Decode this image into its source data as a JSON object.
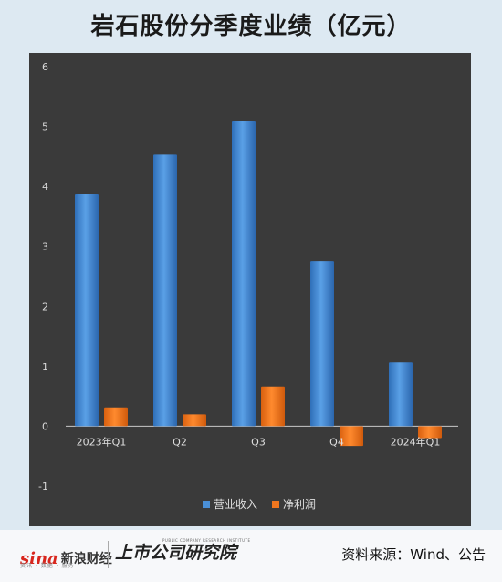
{
  "title": "岩石股份分季度业绩（亿元）",
  "chart_data": {
    "type": "bar",
    "categories": [
      "2023年Q1",
      "Q2",
      "Q3",
      "Q4",
      "2024年Q1"
    ],
    "series": [
      {
        "name": "营业收入",
        "values": [
          3.88,
          4.53,
          5.1,
          2.75,
          1.07
        ],
        "color": "#4a8fd6"
      },
      {
        "name": "净利润",
        "values": [
          0.3,
          0.2,
          0.65,
          -0.33,
          -0.2
        ],
        "color": "#f0761e"
      }
    ],
    "ylim": [
      -1,
      6
    ],
    "yticks": [
      -1,
      0,
      1,
      2,
      3,
      4,
      5,
      6
    ],
    "legend_position": "bottom",
    "grid": false
  },
  "footer": {
    "sina_word": "sina",
    "sina_cn": "新浪财经",
    "sina_sub": "资讯 · 数据 · 服务",
    "institute_name": "上市公司研究院",
    "institute_tag": "PUBLIC COMPANY RESEARCH INSTITUTE",
    "source": "资料来源：Wind、公告"
  }
}
